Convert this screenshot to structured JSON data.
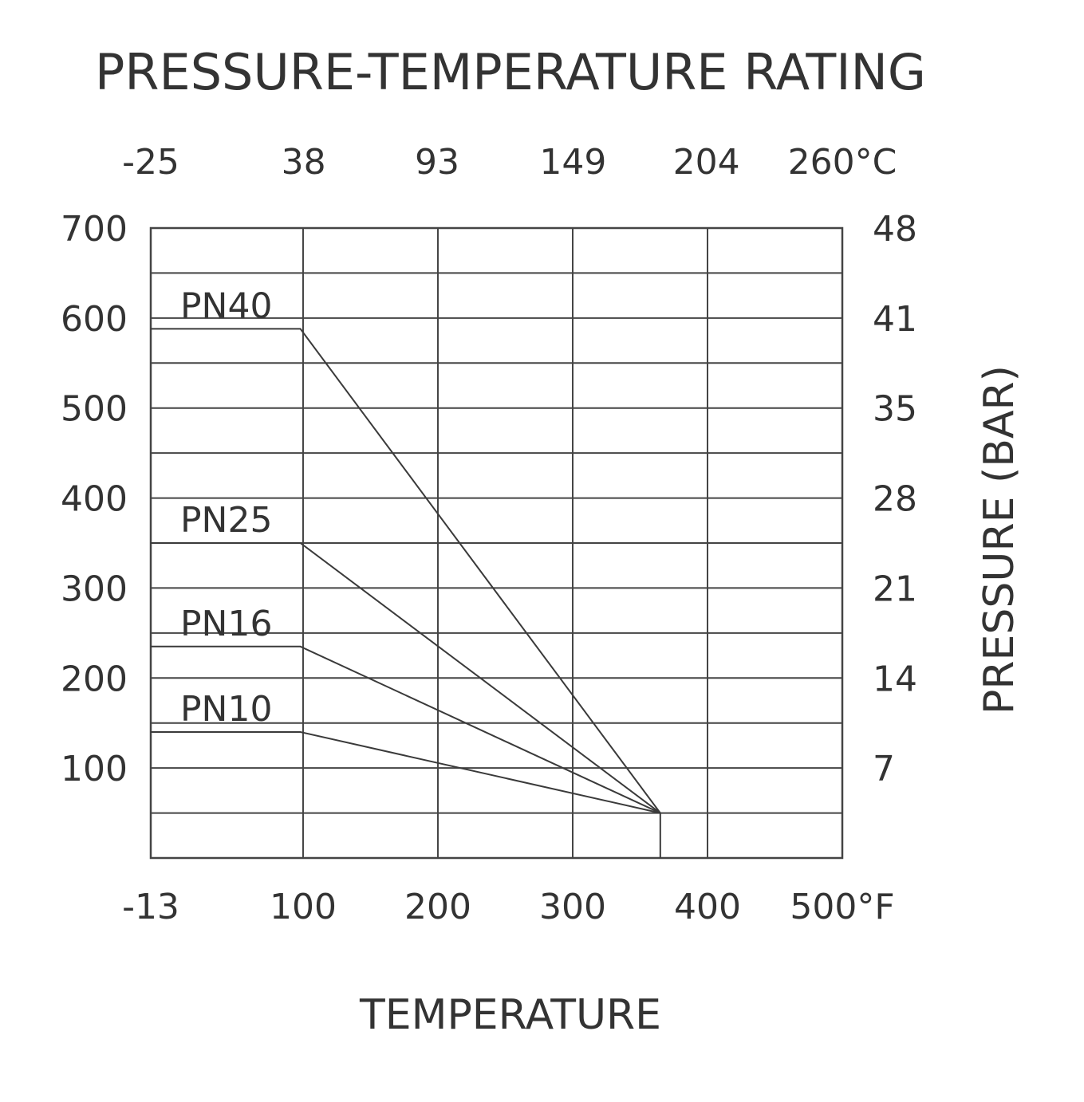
{
  "chart_data": {
    "type": "line",
    "title": "PRESSURE-TEMPERATURE RATING",
    "xlabel": "TEMPERATURE",
    "y2label": "PRESSURE (BAR)",
    "x_unit": "°F",
    "x2_unit": "°C",
    "xlim": [
      -13,
      500
    ],
    "ylim": [
      0,
      700
    ],
    "x_ticks": [
      "-13",
      "100",
      "200",
      "300",
      "400",
      "500"
    ],
    "x2_ticks": [
      "-25",
      "38",
      "93",
      "149",
      "204",
      "260"
    ],
    "y_ticks": [
      "100",
      "200",
      "300",
      "400",
      "500",
      "600",
      "700"
    ],
    "y2_ticks": [
      "7",
      "14",
      "21",
      "28",
      "35",
      "41",
      "48"
    ],
    "grid": true,
    "series": [
      {
        "name": "PN40",
        "x": [
          -13,
          98,
          365,
          365
        ],
        "y": [
          588,
          588,
          50,
          0
        ]
      },
      {
        "name": "PN25",
        "x": [
          -13,
          98,
          365
        ],
        "y": [
          350,
          350,
          50
        ]
      },
      {
        "name": "PN16",
        "x": [
          -13,
          98,
          365
        ],
        "y": [
          235,
          235,
          50
        ]
      },
      {
        "name": "PN10",
        "x": [
          -13,
          98,
          365
        ],
        "y": [
          140,
          140,
          50
        ]
      }
    ]
  }
}
